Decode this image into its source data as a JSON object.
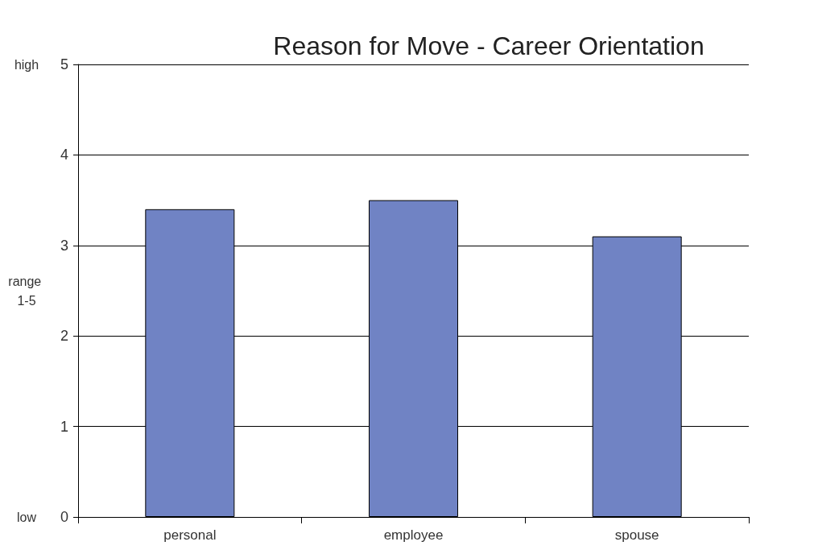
{
  "chart_data": {
    "type": "bar",
    "title": "Reason for Move - Career Orientation",
    "ylabel": "range 1-5",
    "categories": [
      "personal",
      "employee",
      "spouse"
    ],
    "series": [
      {
        "color": "#7083c4",
        "values": [
          3.4,
          3.5,
          3.1
        ]
      }
    ],
    "ylim": [
      0,
      5
    ],
    "yticks": [
      0,
      1,
      2,
      3,
      4,
      5
    ],
    "grid": "y",
    "annotations": [
      "high",
      "low"
    ]
  }
}
